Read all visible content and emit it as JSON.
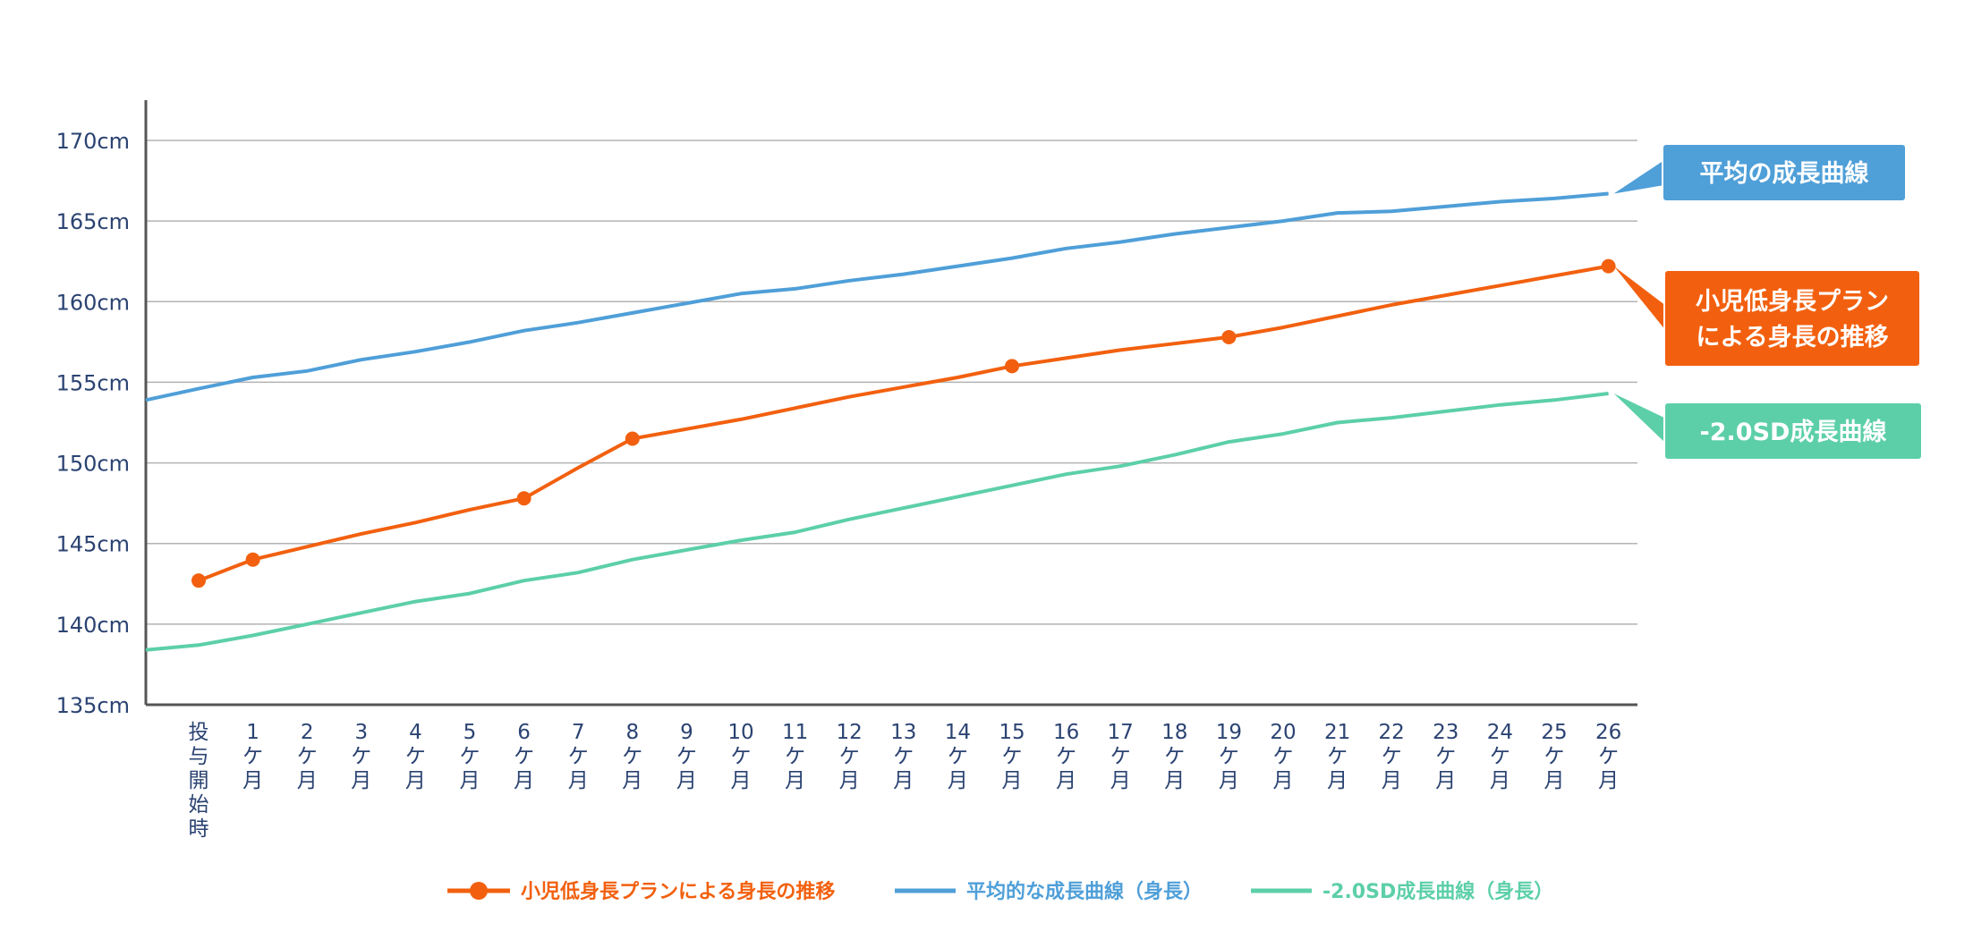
{
  "chart_data": {
    "type": "line",
    "title": "",
    "xlabel": "",
    "ylabel": "",
    "ylim": [
      135,
      170
    ],
    "yticks": [
      135,
      140,
      145,
      150,
      155,
      160,
      165,
      170
    ],
    "ytick_unit": "cm",
    "grid": "horizontal",
    "categories": [
      "投与開始時",
      "1ケ月",
      "2ケ月",
      "3ケ月",
      "4ケ月",
      "5ケ月",
      "6ケ月",
      "7ケ月",
      "8ケ月",
      "9ケ月",
      "10ケ月",
      "11ケ月",
      "12ケ月",
      "13ケ月",
      "14ケ月",
      "15ケ月",
      "16ケ月",
      "17ケ月",
      "18ケ月",
      "19ケ月",
      "20ケ月",
      "21ケ月",
      "22ケ月",
      "23ケ月",
      "24ケ月",
      "25ケ月",
      "26ケ月"
    ],
    "category_stacks": [
      [
        "投",
        "与",
        "開",
        "始",
        "時"
      ],
      [
        "1",
        "ケ",
        "月"
      ],
      [
        "2",
        "ケ",
        "月"
      ],
      [
        "3",
        "ケ",
        "月"
      ],
      [
        "4",
        "ケ",
        "月"
      ],
      [
        "5",
        "ケ",
        "月"
      ],
      [
        "6",
        "ケ",
        "月"
      ],
      [
        "7",
        "ケ",
        "月"
      ],
      [
        "8",
        "ケ",
        "月"
      ],
      [
        "9",
        "ケ",
        "月"
      ],
      [
        "10",
        "ケ",
        "月"
      ],
      [
        "11",
        "ケ",
        "月"
      ],
      [
        "12",
        "ケ",
        "月"
      ],
      [
        "13",
        "ケ",
        "月"
      ],
      [
        "14",
        "ケ",
        "月"
      ],
      [
        "15",
        "ケ",
        "月"
      ],
      [
        "16",
        "ケ",
        "月"
      ],
      [
        "17",
        "ケ",
        "月"
      ],
      [
        "18",
        "ケ",
        "月"
      ],
      [
        "19",
        "ケ",
        "月"
      ],
      [
        "20",
        "ケ",
        "月"
      ],
      [
        "21",
        "ケ",
        "月"
      ],
      [
        "22",
        "ケ",
        "月"
      ],
      [
        "23",
        "ケ",
        "月"
      ],
      [
        "24",
        "ケ",
        "月"
      ],
      [
        "25",
        "ケ",
        "月"
      ],
      [
        "26",
        "ケ",
        "月"
      ]
    ],
    "series": [
      {
        "name": "平均的な成長曲線（身長）",
        "color": "#4f9fd8",
        "marker": "none",
        "start_value": 153.9,
        "values": [
          154.6,
          155.3,
          155.7,
          156.4,
          156.9,
          157.5,
          158.2,
          158.7,
          159.3,
          159.9,
          160.5,
          160.8,
          161.3,
          161.7,
          162.2,
          162.7,
          163.3,
          163.7,
          164.2,
          164.6,
          165.0,
          165.5,
          165.6,
          165.9,
          166.2,
          166.4,
          166.7
        ]
      },
      {
        "name": "小児低身長プランによる身長の推移",
        "color": "#f2600f",
        "marker": "circle",
        "values": [
          142.7,
          144.0,
          144.8,
          145.6,
          146.3,
          147.1,
          147.8,
          149.7,
          151.5,
          152.1,
          152.7,
          153.4,
          154.1,
          154.7,
          155.3,
          156.0,
          156.5,
          157.0,
          157.4,
          157.8,
          158.4,
          159.1,
          159.8,
          160.4,
          161.0,
          161.6,
          162.2
        ],
        "marker_indices": [
          0,
          1,
          6,
          8,
          15,
          19,
          26
        ]
      },
      {
        "name": "-2.0SD成長曲線（身長）",
        "color": "#5ccfa9",
        "marker": "none",
        "start_value": 138.4,
        "values": [
          138.7,
          139.3,
          140.0,
          140.7,
          141.4,
          141.9,
          142.7,
          143.2,
          144.0,
          144.6,
          145.2,
          145.7,
          146.5,
          147.2,
          147.9,
          148.6,
          149.3,
          149.8,
          150.5,
          151.3,
          151.8,
          152.5,
          152.8,
          153.2,
          153.6,
          153.9,
          154.3
        ]
      }
    ],
    "callouts": [
      {
        "series": 0,
        "lines": [
          "平均の成長曲線"
        ],
        "color": "#4f9fd8"
      },
      {
        "series": 1,
        "lines": [
          "小児低身長プラン",
          "による身長の推移"
        ],
        "color": "#f2600f"
      },
      {
        "series": 2,
        "lines": [
          "-2.0SD成長曲線"
        ],
        "color": "#5ccfa9"
      }
    ],
    "legend": {
      "placement": "bottom-center",
      "items": [
        {
          "label": "小児低身長プランによる身長の推移",
          "color": "#f2600f",
          "marker": "circle"
        },
        {
          "label": "平均的な成長曲線（身長）",
          "color": "#4f9fd8",
          "marker": "none"
        },
        {
          "label": "-2.0SD成長曲線（身長）",
          "color": "#5ccfa9",
          "marker": "none"
        }
      ]
    },
    "colors": {
      "axis": "#555555",
      "grid": "#b3b3b3",
      "tick_text": "#2b4372"
    }
  }
}
